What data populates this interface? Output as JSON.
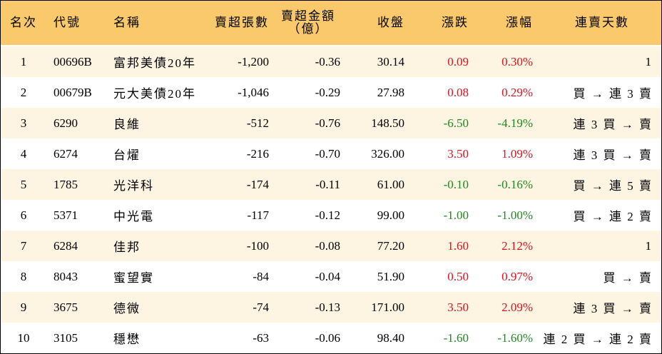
{
  "table": {
    "headers": [
      "名次",
      "代號",
      "名稱",
      "賣超張數",
      [
        "賣超金額",
        "（億）"
      ],
      "收盤",
      "漲跌",
      "漲幅",
      "連賣天數"
    ],
    "rows": [
      [
        "1",
        "00696B",
        "富邦美債20年",
        "-1,200",
        "-0.36",
        "30.14",
        "0.09",
        "0.30%",
        "1"
      ],
      [
        "2",
        "00679B",
        "元大美債20年",
        "-1,046",
        "-0.29",
        "27.98",
        "0.08",
        "0.29%",
        "買 → 連 3 賣"
      ],
      [
        "3",
        "6290",
        "良維",
        "-512",
        "-0.76",
        "148.50",
        "-6.50",
        "-4.19%",
        "連 3 買 → 賣"
      ],
      [
        "4",
        "6274",
        "台燿",
        "-216",
        "-0.70",
        "326.00",
        "3.50",
        "1.09%",
        "連 3 買 → 賣"
      ],
      [
        "5",
        "1785",
        "光洋科",
        "-174",
        "-0.11",
        "61.00",
        "-0.10",
        "-0.16%",
        "買 → 連 5 賣"
      ],
      [
        "6",
        "5371",
        "中光電",
        "-117",
        "-0.12",
        "99.00",
        "-1.00",
        "-1.00%",
        "買 → 連 2 賣"
      ],
      [
        "7",
        "6284",
        "佳邦",
        "-100",
        "-0.08",
        "77.20",
        "1.60",
        "2.12%",
        "1"
      ],
      [
        "8",
        "8043",
        "蜜望實",
        "-84",
        "-0.04",
        "51.90",
        "0.50",
        "0.97%",
        "買 → 賣"
      ],
      [
        "9",
        "3675",
        "德微",
        "-74",
        "-0.13",
        "171.00",
        "3.50",
        "2.09%",
        "連 3 買 → 賣"
      ],
      [
        "10",
        "3105",
        "穩懋",
        "-63",
        "-0.06",
        "98.40",
        "-1.60",
        "-1.60%",
        "連 2 買 → 連 2 賣"
      ]
    ]
  }
}
